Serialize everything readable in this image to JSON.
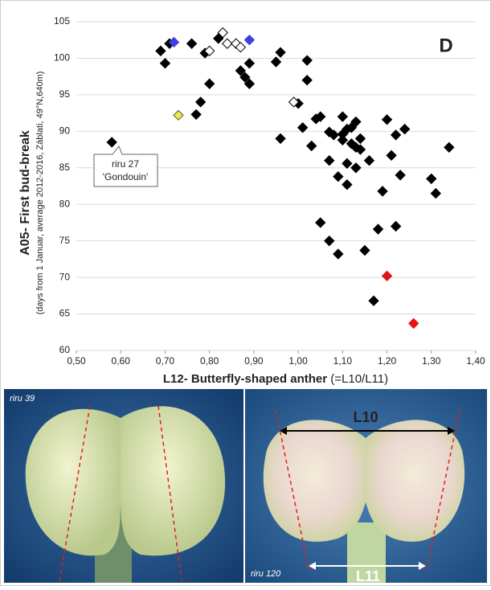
{
  "chart_data": {
    "type": "scatter",
    "panel_label": "D",
    "y_label": "A05- First bud-break",
    "y_sublabel": "(days from 1 Januar, average 2012-2016, Záblati, 49°N,640m)",
    "x_label": "L12- Butterfly-shaped anther",
    "x_label_suffix": "(=L10/L11)",
    "callout": [
      "riru 27",
      "'Gondouin'"
    ],
    "xlim": [
      0.5,
      1.4
    ],
    "xticks": [
      {
        "value": 0.5,
        "label": "0,50"
      },
      {
        "value": 0.6,
        "label": "0,60"
      },
      {
        "value": 0.7,
        "label": "0,70"
      },
      {
        "value": 0.8,
        "label": "0,80"
      },
      {
        "value": 0.9,
        "label": "0,90"
      },
      {
        "value": 1.0,
        "label": "1,00"
      },
      {
        "value": 1.1,
        "label": "1,10"
      },
      {
        "value": 1.2,
        "label": "1,20"
      },
      {
        "value": 1.3,
        "label": "1,30"
      },
      {
        "value": 1.4,
        "label": "1,40"
      }
    ],
    "ylim": [
      60,
      105
    ],
    "yticks": [
      60,
      65,
      70,
      75,
      80,
      85,
      90,
      95,
      100,
      105
    ],
    "grid": true,
    "grid_color": "#d9d9d9",
    "series": [
      {
        "color": "#000000",
        "edge_color": "#000000",
        "x": [
          0.58,
          0.69,
          0.7,
          0.71,
          0.76,
          0.77,
          0.78,
          0.79,
          0.8,
          0.82,
          0.87,
          0.88,
          0.89,
          0.89,
          0.95,
          0.96,
          0.96,
          1.0,
          1.01,
          1.02,
          1.02,
          1.03,
          1.04,
          1.05,
          1.05,
          1.07,
          1.07,
          1.07,
          1.08,
          1.09,
          1.09,
          1.1,
          1.1,
          1.1,
          1.11,
          1.11,
          1.11,
          1.12,
          1.12,
          1.13,
          1.13,
          1.13,
          1.14,
          1.14,
          1.15,
          1.16,
          1.17,
          1.18,
          1.19,
          1.2,
          1.21,
          1.22,
          1.22,
          1.23,
          1.24,
          1.3,
          1.31,
          1.34
        ],
        "values": [
          88.5,
          101.0,
          99.3,
          102.0,
          102.0,
          92.3,
          94.0,
          100.7,
          96.5,
          102.7,
          98.3,
          97.4,
          99.3,
          96.5,
          99.5,
          100.8,
          89.0,
          93.8,
          90.5,
          99.7,
          97.0,
          88.0,
          91.7,
          92.0,
          77.5,
          75.0,
          89.9,
          86.0,
          89.5,
          83.8,
          73.2,
          92.0,
          89.6,
          88.8,
          90.3,
          85.6,
          82.7,
          90.5,
          88.3,
          87.8,
          85.0,
          91.3,
          89.0,
          87.5,
          73.7,
          86.0,
          66.8,
          76.6,
          81.8,
          91.6,
          86.7,
          89.5,
          77.0,
          84.0,
          90.3,
          83.5,
          81.5,
          87.8
        ]
      },
      {
        "color": "#ffffff",
        "edge_color": "#000000",
        "x": [
          0.8,
          0.83,
          0.84,
          0.86,
          0.87,
          0.99
        ],
        "values": [
          101.0,
          103.5,
          102.0,
          102.0,
          101.5,
          94.0
        ]
      },
      {
        "color": "#3f3fe0",
        "edge_color": "#3f3fe0",
        "x": [
          0.72,
          0.89
        ],
        "values": [
          102.2,
          102.5
        ]
      },
      {
        "color": "#f2e640",
        "edge_color": "#555555",
        "x": [
          0.73
        ],
        "values": [
          92.2
        ]
      },
      {
        "color": "#e01414",
        "edge_color": "#e01414",
        "x": [
          1.2,
          1.26
        ],
        "values": [
          70.2,
          63.7
        ]
      }
    ]
  },
  "photos": [
    {
      "label": "riru 39"
    },
    {
      "label": "riru 120",
      "measures": [
        "L10",
        "L11"
      ]
    }
  ]
}
